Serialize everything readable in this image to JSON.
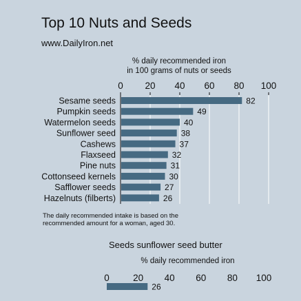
{
  "header": {
    "title": "Top 10 Nuts and Seeds",
    "subtitle": "www.DailyIron.net"
  },
  "footnote": "The daily recommended intake is based on the recommended amount for a woman, aged 30.",
  "colors": {
    "background": "#c9d4de",
    "bar": "#466a82",
    "grid": "#ffffff"
  },
  "chart_data": [
    {
      "type": "bar",
      "orientation": "horizontal",
      "title": "",
      "xlabel": "% daily recommended iron in 100 grams of nuts or seeds",
      "xlabel_lines": [
        "% daily recommended iron",
        "in 100 grams of nuts or seeds"
      ],
      "xlim": [
        0,
        100
      ],
      "xticks": [
        0,
        20,
        40,
        60,
        80,
        100
      ],
      "grid": true,
      "categories": [
        "Sesame seeds",
        "Pumpkin seeds",
        "Watermelon seeds",
        "Sunflower seed",
        "Cashews",
        "Flaxseed",
        "Pine nuts",
        "Cottonseed kernels",
        "Safflower seeds",
        "Hazelnuts (filberts)"
      ],
      "values": [
        82,
        49,
        40,
        38,
        37,
        32,
        31,
        30,
        27,
        26
      ]
    },
    {
      "type": "bar",
      "orientation": "horizontal",
      "title": "Seeds sunflower seed butter",
      "xlabel": "% daily recommended iron",
      "xlim": [
        0,
        100
      ],
      "xticks": [
        0,
        20,
        40,
        60,
        80,
        100
      ],
      "grid": false,
      "categories": [
        ""
      ],
      "values": [
        26
      ]
    }
  ]
}
